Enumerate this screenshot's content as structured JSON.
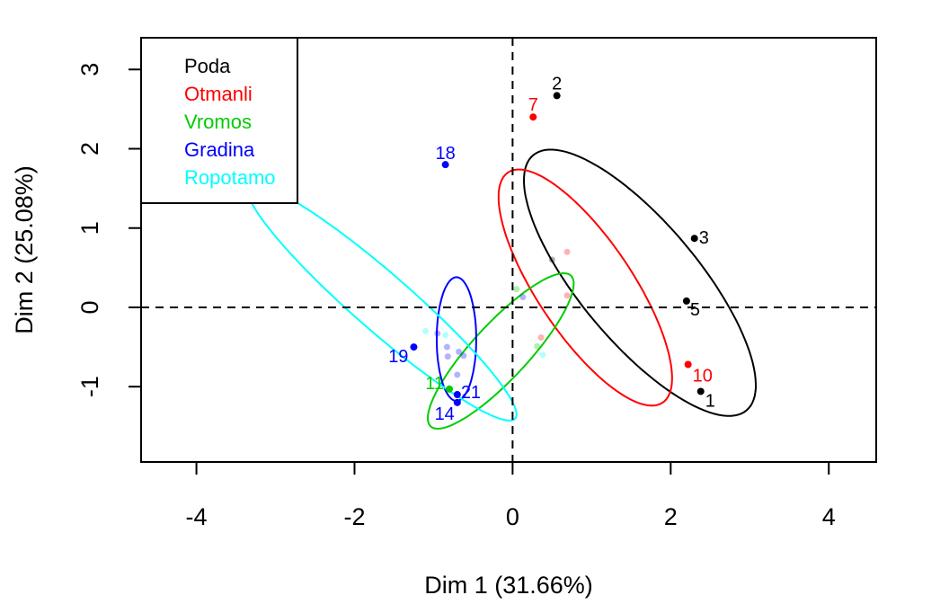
{
  "colors": {
    "Poda": "#000000",
    "Otmanli": "#ff0000",
    "Vromos": "#00cd00",
    "Gradina": "#0000ff",
    "Ropotamo": "#00ffff"
  },
  "chart_data": {
    "type": "scatter",
    "xlabel": "Dim 1 (31.66%)",
    "ylabel": "Dim 2 (25.08%)",
    "xlim": [
      -4.7,
      4.6
    ],
    "ylim": [
      -1.95,
      3.4
    ],
    "x_ticks": [
      -4,
      -2,
      0,
      2,
      4
    ],
    "y_ticks": [
      -1,
      0,
      1,
      2,
      3
    ],
    "x_tick_labels": [
      "-4",
      "-2",
      "0",
      "2",
      "4"
    ],
    "y_tick_labels": [
      "-1",
      "0",
      "1",
      "2",
      "3"
    ],
    "reference_lines": {
      "x": 0,
      "y": 0,
      "style": "dashed"
    },
    "legend": {
      "position": "top-left",
      "entries": [
        "Poda",
        "Otmanli",
        "Vromos",
        "Gradina",
        "Ropotamo"
      ]
    },
    "labeled_points": [
      {
        "label": "2",
        "group": "Poda",
        "x": 0.56,
        "y": 2.67
      },
      {
        "label": "7",
        "group": "Otmanli",
        "x": 0.26,
        "y": 2.4
      },
      {
        "label": "18",
        "group": "Gradina",
        "x": -0.85,
        "y": 1.8
      },
      {
        "label": "3",
        "group": "Poda",
        "x": 2.3,
        "y": 0.87
      },
      {
        "label": "5",
        "group": "Poda",
        "x": 2.2,
        "y": 0.08
      },
      {
        "label": "10",
        "group": "Otmanli",
        "x": 2.22,
        "y": -0.72
      },
      {
        "label": "1",
        "group": "Poda",
        "x": 2.38,
        "y": -1.06
      },
      {
        "label": "19",
        "group": "Gradina",
        "x": -1.25,
        "y": -0.5
      },
      {
        "label": "11",
        "group": "Vromos",
        "x": -0.8,
        "y": -1.03
      },
      {
        "label": "21",
        "group": "Gradina",
        "x": -0.7,
        "y": -1.1
      },
      {
        "label": "14",
        "group": "Gradina",
        "x": -0.7,
        "y": -1.2
      },
      {
        "label": "",
        "group": "Ropotamo",
        "x": -2.78,
        "y": 1.94
      }
    ],
    "supplementary_points": [
      {
        "group": "Poda",
        "x": 0.5,
        "y": 0.6
      },
      {
        "group": "Otmanli",
        "x": 0.69,
        "y": 0.7
      },
      {
        "group": "Otmanli",
        "x": 0.69,
        "y": 0.15
      },
      {
        "group": "Otmanli",
        "x": 0.36,
        "y": -0.38
      },
      {
        "group": "Vromos",
        "x": 0.05,
        "y": 0.23
      },
      {
        "group": "Vromos",
        "x": 0.31,
        "y": -0.49
      },
      {
        "group": "Gradina",
        "x": 0.13,
        "y": 0.13
      },
      {
        "group": "Gradina",
        "x": -0.95,
        "y": -0.33
      },
      {
        "group": "Gradina",
        "x": -0.83,
        "y": -0.5
      },
      {
        "group": "Gradina",
        "x": -0.82,
        "y": -0.62
      },
      {
        "group": "Gradina",
        "x": -0.68,
        "y": -0.56
      },
      {
        "group": "Gradina",
        "x": -0.62,
        "y": -0.61
      },
      {
        "group": "Gradina",
        "x": -0.7,
        "y": -0.85
      },
      {
        "group": "Ropotamo",
        "x": -1.1,
        "y": -0.3
      },
      {
        "group": "Ropotamo",
        "x": 0.38,
        "y": -0.6
      },
      {
        "group": "Ropotamo",
        "x": -0.85,
        "y": -0.35
      }
    ],
    "ellipses": [
      {
        "group": "Poda",
        "cx": 1.61,
        "cy": 0.31,
        "semi_major": 2.1,
        "semi_minor": 0.75,
        "angle_deg": -50
      },
      {
        "group": "Otmanli",
        "cx": 0.92,
        "cy": 0.25,
        "semi_major": 1.75,
        "semi_minor": 0.6,
        "angle_deg": -56
      },
      {
        "group": "Vromos",
        "cx": -0.15,
        "cy": -0.55,
        "semi_major": 1.3,
        "semi_minor": 0.35,
        "angle_deg": 47
      },
      {
        "group": "Gradina",
        "cx": -0.71,
        "cy": -0.4,
        "semi_major": 0.78,
        "semi_minor": 0.25,
        "angle_deg": 90
      },
      {
        "group": "Ropotamo",
        "cx": -1.65,
        "cy": 0.06,
        "semi_major": 2.23,
        "semi_minor": 0.36,
        "angle_deg": -41
      }
    ]
  }
}
